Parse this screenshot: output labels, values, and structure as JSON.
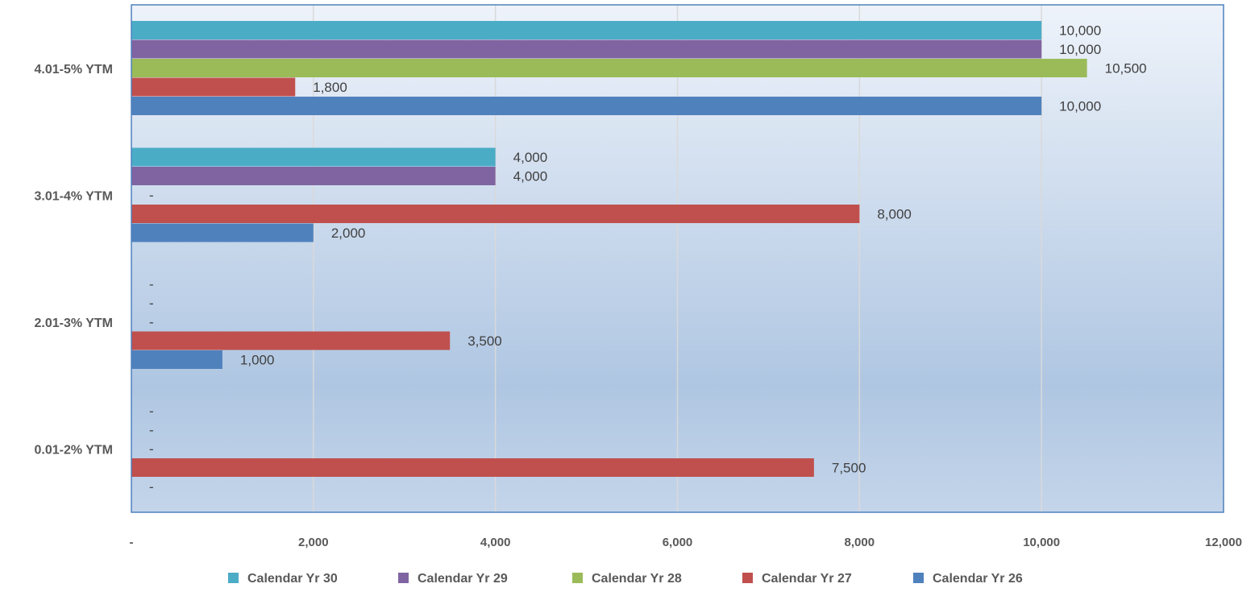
{
  "chart_data": {
    "type": "bar",
    "orientation": "horizontal",
    "title": "",
    "xlabel": "",
    "ylabel": "",
    "xlim": [
      0,
      12000
    ],
    "x_ticks": [
      "-",
      "2,000",
      "4,000",
      "6,000",
      "8,000",
      "10,000",
      "12,000"
    ],
    "categories": [
      "4.01-5% YTM",
      "3.01-4% YTM",
      "2.01-3% YTM",
      "0.01-2% YTM"
    ],
    "series": [
      {
        "name": "Calendar Yr 30",
        "color": "#4BACC6",
        "values": [
          10000,
          4000,
          0,
          0
        ],
        "labels": [
          "10,000",
          "4,000",
          "-",
          "-"
        ]
      },
      {
        "name": "Calendar Yr 29",
        "color": "#8064A2",
        "values": [
          10000,
          4000,
          0,
          0
        ],
        "labels": [
          "10,000",
          "4,000",
          "-",
          "-"
        ]
      },
      {
        "name": "Calendar Yr 28",
        "color": "#9BBB59",
        "values": [
          10500,
          0,
          0,
          0
        ],
        "labels": [
          "10,500",
          "-",
          "-",
          "-"
        ]
      },
      {
        "name": "Calendar Yr 27",
        "color": "#C0504D",
        "values": [
          1800,
          8000,
          3500,
          7500
        ],
        "labels": [
          "1,800",
          "8,000",
          "3,500",
          "7,500"
        ]
      },
      {
        "name": "Calendar Yr 26",
        "color": "#4F81BD",
        "values": [
          10000,
          2000,
          1000,
          0
        ],
        "labels": [
          "10,000",
          "2,000",
          "1,000",
          "-"
        ]
      }
    ],
    "legend": {
      "position": "bottom",
      "entries": [
        "Calendar Yr 30",
        "Calendar Yr 29",
        "Calendar Yr 28",
        "Calendar Yr 27",
        "Calendar Yr 26"
      ]
    },
    "grid": true,
    "colors": {
      "plot_border": "#4F81BD",
      "grid": "#D9D9D9",
      "bg_top": "#EEF3FA",
      "bg_bottom": "#A7BFDD"
    }
  }
}
